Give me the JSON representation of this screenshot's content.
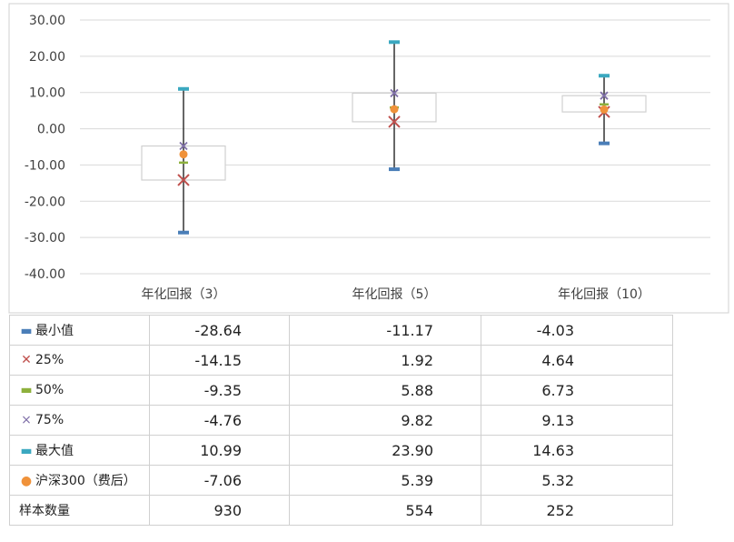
{
  "chart_data": {
    "type": "boxplot",
    "categories": [
      "年化回报（3）",
      "年化回报（5）",
      "年化回报（10）"
    ],
    "ylim": [
      -40,
      30
    ],
    "yticks": [
      "30.00",
      "20.00",
      "10.00",
      "0.00",
      "-10.00",
      "-20.00",
      "-30.00",
      "-40.00"
    ],
    "ytick_values": [
      30,
      20,
      10,
      0,
      -10,
      -20,
      -30,
      -40
    ],
    "series": [
      {
        "name": "最小值",
        "values": [
          -28.64,
          -11.17,
          -4.03
        ],
        "labels": [
          "-28.64",
          "-11.17",
          "-4.03"
        ],
        "color": "#4a7eb8",
        "marker": "dash"
      },
      {
        "name": "25%",
        "values": [
          -14.15,
          1.92,
          4.64
        ],
        "labels": [
          "-14.15",
          "1.92",
          "4.64"
        ],
        "color": "#c0504d",
        "marker": "x"
      },
      {
        "name": "50%",
        "values": [
          -9.35,
          5.88,
          6.73
        ],
        "labels": [
          "-9.35",
          "5.88",
          "6.73"
        ],
        "color": "#8db03c",
        "marker": "dash"
      },
      {
        "name": "75%",
        "values": [
          -4.76,
          9.82,
          9.13
        ],
        "labels": [
          "-4.76",
          "9.82",
          "9.13"
        ],
        "color": "#7f6fa8",
        "marker": "x"
      },
      {
        "name": "最大值",
        "values": [
          10.99,
          23.9,
          14.63
        ],
        "labels": [
          "10.99",
          "23.90",
          "14.63"
        ],
        "color": "#3aa8c0",
        "marker": "dash"
      },
      {
        "name": "沪深300（费后）",
        "values": [
          -7.06,
          5.39,
          5.32
        ],
        "labels": [
          "-7.06",
          "5.39",
          "5.32"
        ],
        "color": "#f0923a",
        "marker": "dot"
      }
    ],
    "sample_row": {
      "name": "样本数量",
      "values": [
        "930",
        "554",
        "252"
      ]
    }
  },
  "colors": {
    "grid": "#d9d9d9",
    "whisker": "#333333",
    "box_border": "#d0d0d0"
  }
}
